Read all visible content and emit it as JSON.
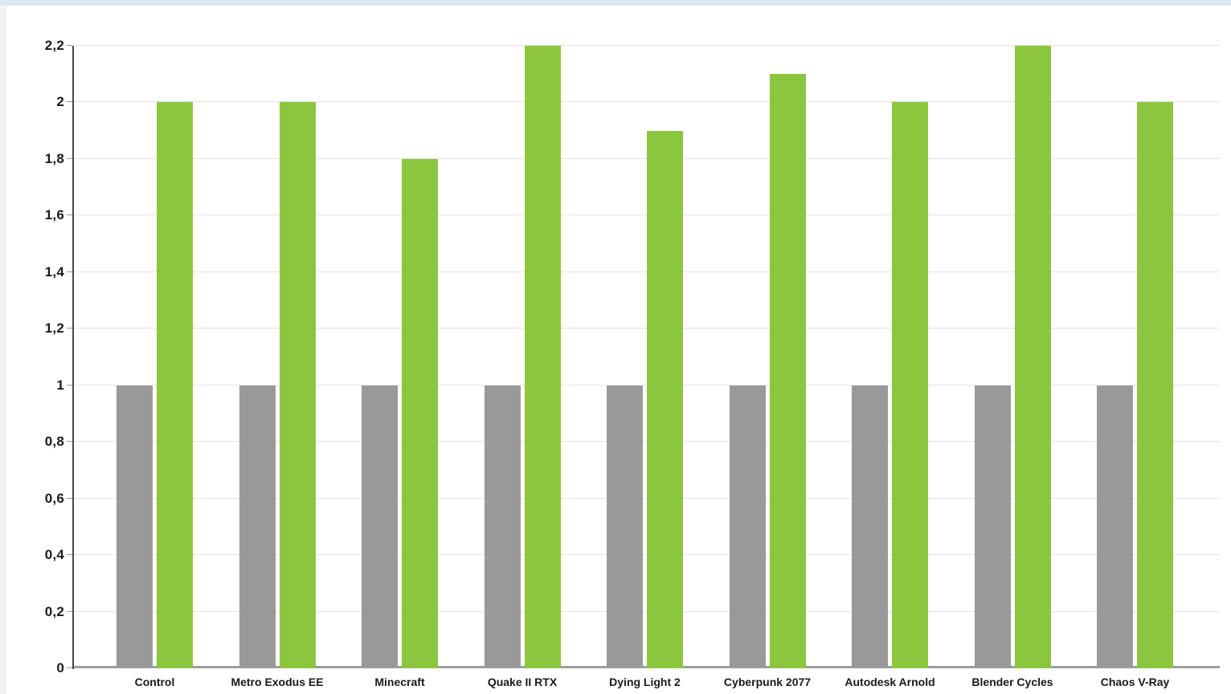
{
  "chart_data": {
    "type": "bar",
    "categories": [
      "Control",
      "Metro Exodus EE",
      "Minecraft",
      "Quake II RTX",
      "Dying Light 2",
      "Cyberpunk 2077",
      "Autodesk Arnold",
      "Blender Cycles",
      "Chaos V-Ray"
    ],
    "series": [
      {
        "name": "baseline",
        "color": "#999999",
        "values": [
          1,
          1,
          1,
          1,
          1,
          1,
          1,
          1,
          1
        ]
      },
      {
        "name": "comparison",
        "color": "#8CC63F",
        "values": [
          2.0,
          2.0,
          1.8,
          2.2,
          1.9,
          2.1,
          2.0,
          2.2,
          2.0
        ]
      }
    ],
    "title": "",
    "xlabel": "",
    "ylabel": "",
    "ylim": [
      0,
      2.2
    ],
    "y_tick_values": [
      0,
      0.2,
      0.4,
      0.6,
      0.8,
      1,
      1.2,
      1.4,
      1.6,
      1.8,
      2,
      2.2
    ],
    "y_tick_labels": [
      "0",
      "0,2",
      "0,4",
      "0,6",
      "0,8",
      "1",
      "1,2",
      "1,4",
      "1,6",
      "1,8",
      "2",
      "2,2"
    ],
    "decimal_separator": ",",
    "grid": true,
    "legend_position": "none"
  },
  "colors": {
    "bar_gray": "#999999",
    "bar_green": "#8CC63F",
    "gridline": "#e4e4e4",
    "baseline": "#9e9e9e",
    "axis_line": "#4a4a4a",
    "tick": "#999999",
    "label_text": "#1a1a1a",
    "frame_top": "#dce8f2",
    "frame_left": "#f2f3f5",
    "card_background": "#ffffff"
  }
}
